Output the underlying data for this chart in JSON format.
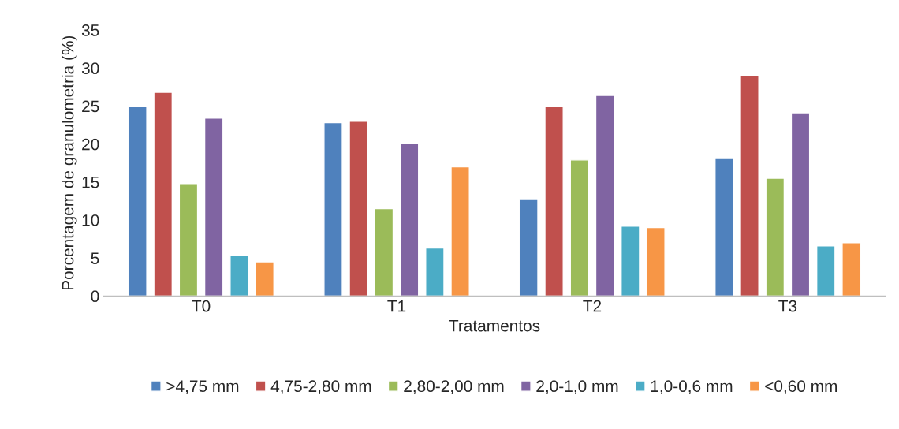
{
  "chart_data": {
    "type": "bar",
    "xlabel": "Tratamentos",
    "ylabel": "Porcentagem de granulometria (%)",
    "categories": [
      "T0",
      "T1",
      "T2",
      "T3"
    ],
    "series": [
      {
        "name": ">4,75 mm",
        "color": "#4f81bd",
        "values": [
          24.9,
          22.8,
          12.8,
          18.2
        ]
      },
      {
        "name": "4,75-2,80 mm",
        "color": "#c0504d",
        "values": [
          26.8,
          23.0,
          24.9,
          29.0
        ]
      },
      {
        "name": "2,80-2,00 mm",
        "color": "#9bbb59",
        "values": [
          14.8,
          11.5,
          17.9,
          15.5
        ]
      },
      {
        "name": "2,0-1,0 mm",
        "color": "#8064a2",
        "values": [
          23.4,
          20.1,
          26.4,
          24.1
        ]
      },
      {
        "name": "1,0-0,6 mm",
        "color": "#4bacc6",
        "values": [
          5.4,
          6.3,
          9.2,
          6.6
        ]
      },
      {
        "name": "<0,60 mm",
        "color": "#f79646",
        "values": [
          4.5,
          17.0,
          9.0,
          7.0
        ]
      }
    ],
    "ylim": [
      0,
      35
    ],
    "yticks": [
      0,
      5,
      10,
      15,
      20,
      25,
      30,
      35
    ],
    "grid": false,
    "legend": "bottom"
  }
}
